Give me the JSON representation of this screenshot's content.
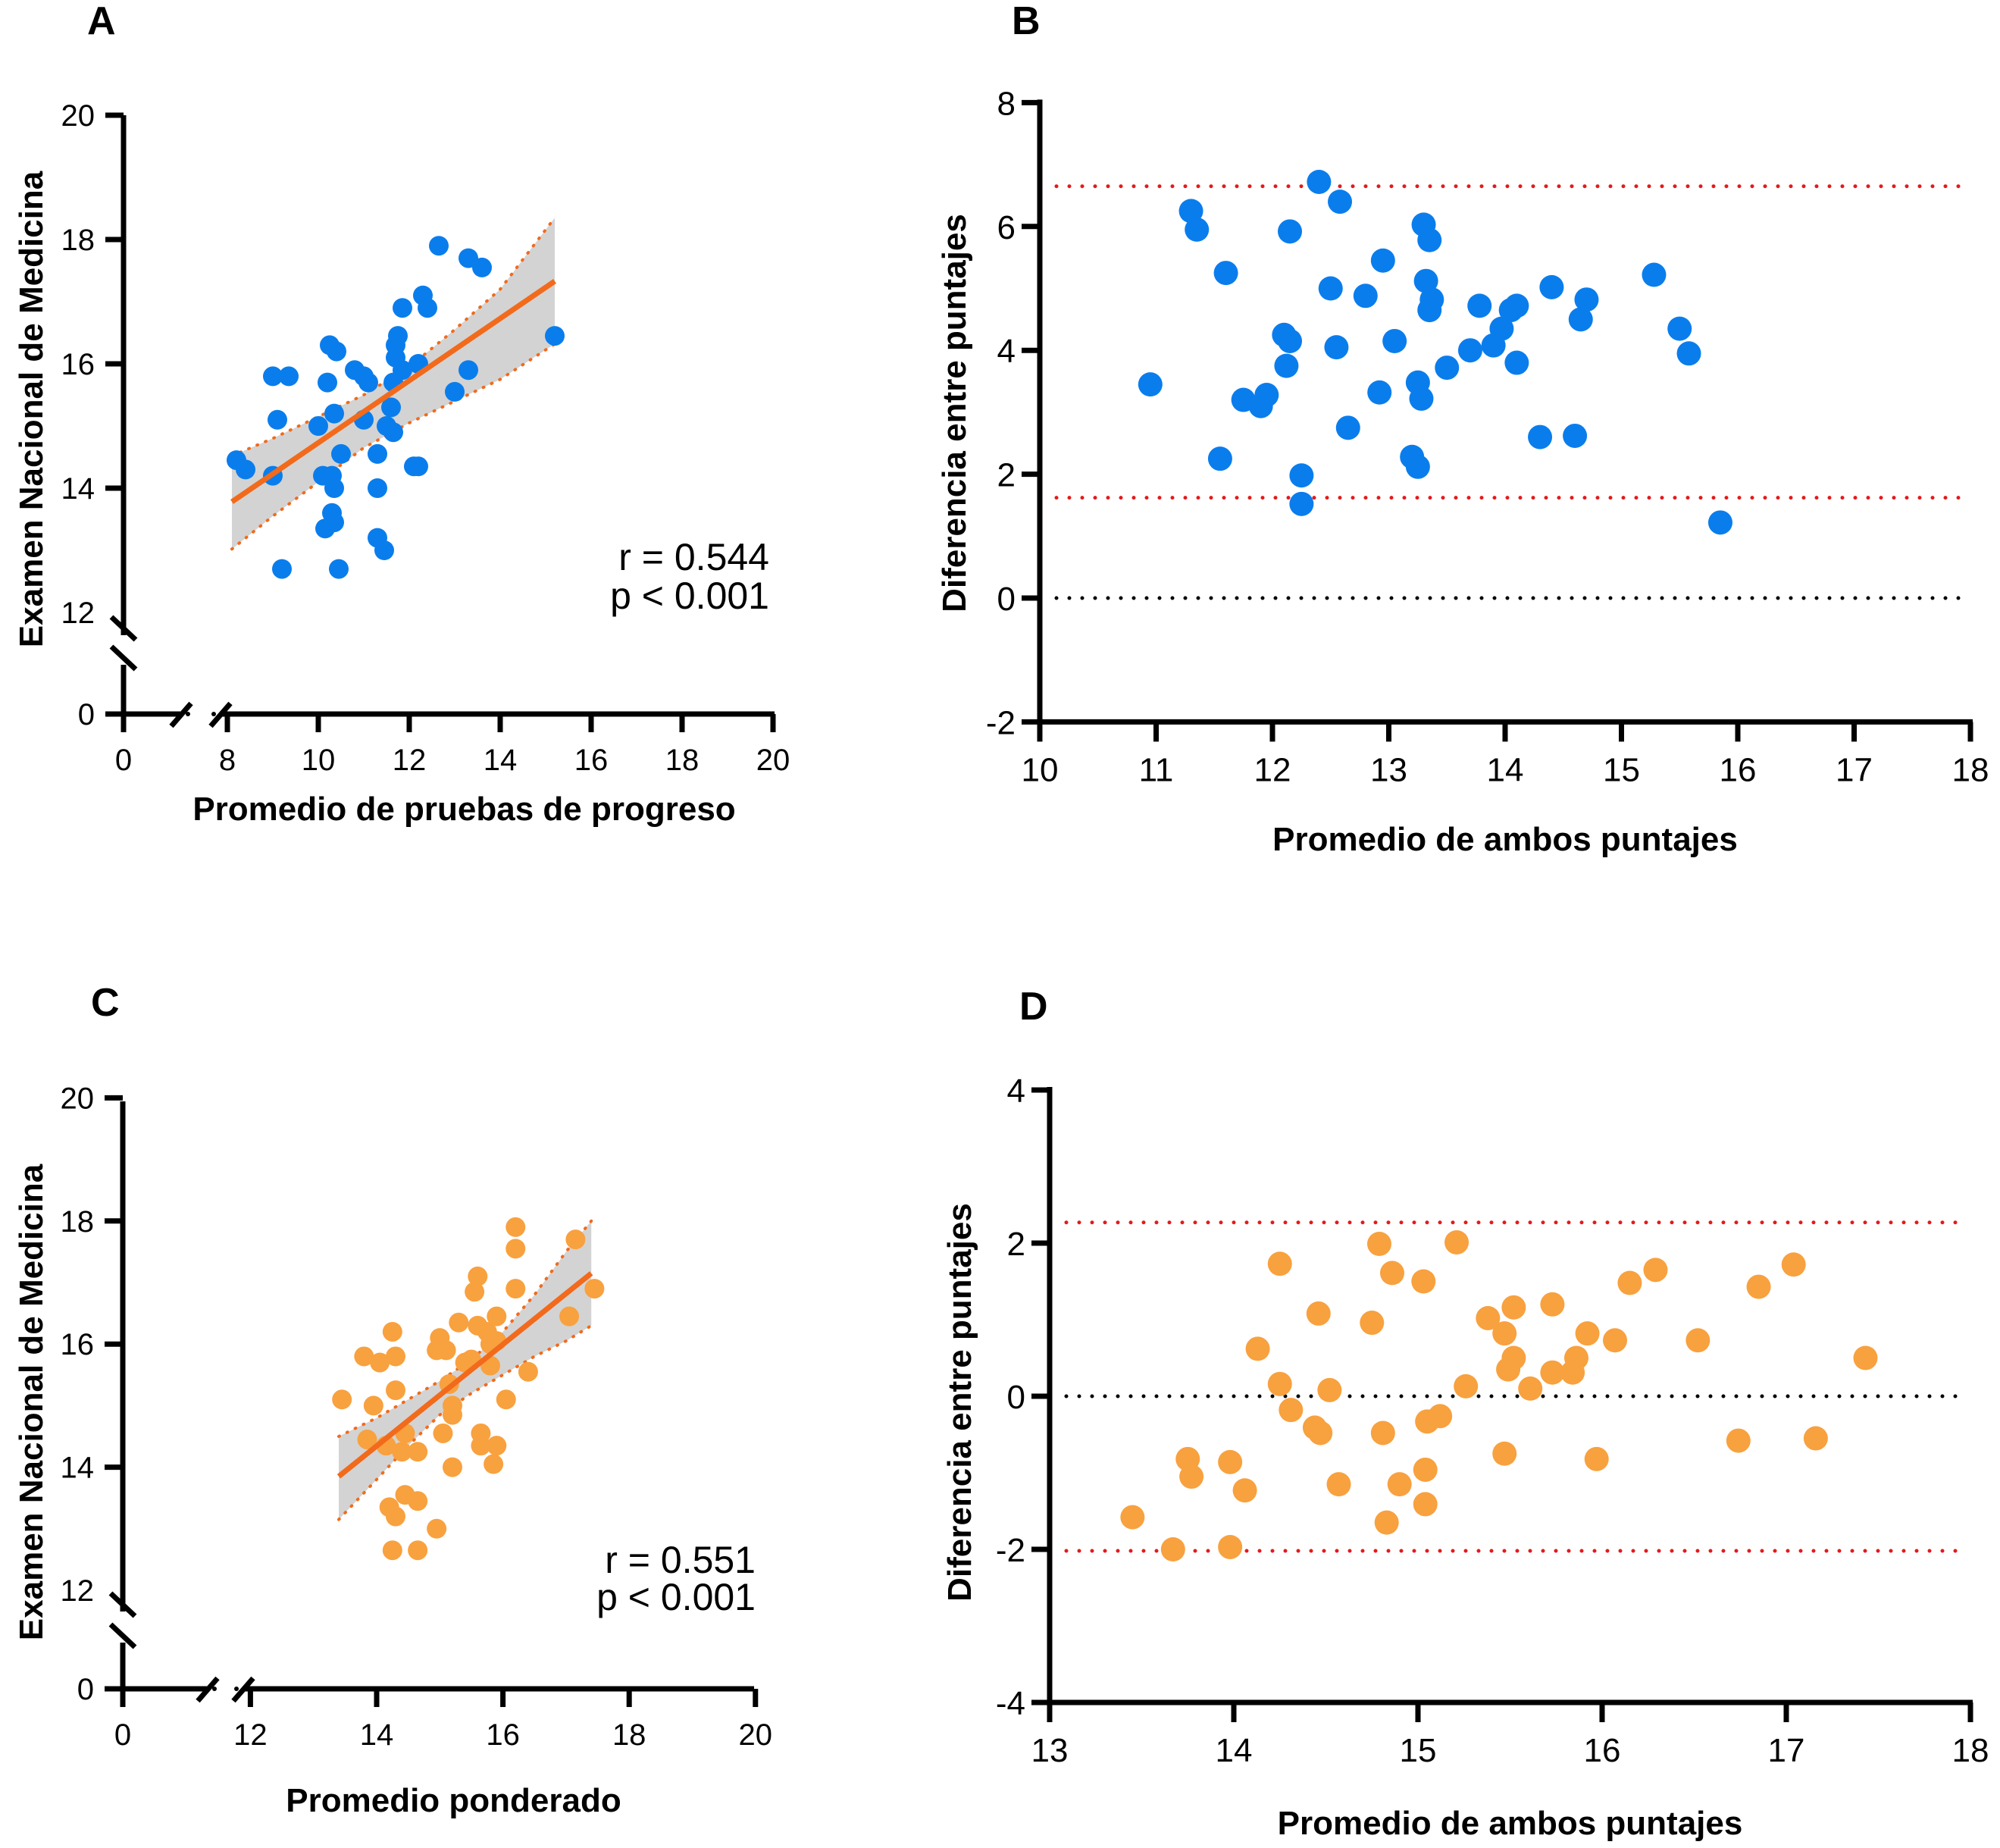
{
  "chart_data": [
    {
      "id": "A",
      "type": "scatter",
      "panel_label": "A",
      "xlabel": "Promedio de pruebas de progreso",
      "ylabel": "Examen Nacional de Medicina",
      "x_ticks": [
        "0",
        "8",
        "10",
        "12",
        "14",
        "16",
        "18",
        "20"
      ],
      "y_ticks": [
        "0",
        "12",
        "14",
        "16",
        "18",
        "20"
      ],
      "x_break": [
        0,
        8
      ],
      "y_break": [
        0,
        12
      ],
      "xlim": [
        8,
        20
      ],
      "ylim": [
        12,
        20
      ],
      "point_color": "#0a7ded",
      "fit_color": "#f26a1b",
      "band_color": "#d3d3d3",
      "annotation": [
        "r = 0.544",
        "p < 0.001"
      ],
      "fit": {
        "x": [
          8.1,
          15.2
        ],
        "y": [
          13.78,
          17.33
        ]
      },
      "ci_upper": {
        "x": [
          8.1,
          9,
          10,
          11,
          12,
          13,
          14,
          15.2
        ],
        "y": [
          14.52,
          14.8,
          15.15,
          15.5,
          15.95,
          16.55,
          17.2,
          18.35
        ]
      },
      "ci_lower": {
        "x": [
          8.1,
          9,
          10,
          11,
          12,
          13,
          14,
          15.2
        ],
        "y": [
          13.02,
          13.55,
          14.1,
          14.65,
          15.05,
          15.4,
          15.75,
          16.32
        ]
      },
      "points": [
        [
          8.2,
          14.45
        ],
        [
          8.4,
          14.3
        ],
        [
          9.0,
          15.8
        ],
        [
          9.35,
          15.8
        ],
        [
          9.1,
          15.1
        ],
        [
          9.0,
          14.2
        ],
        [
          9.2,
          12.7
        ],
        [
          10.0,
          15.0
        ],
        [
          10.1,
          14.2
        ],
        [
          10.3,
          14.2
        ],
        [
          10.35,
          14.0
        ],
        [
          10.2,
          15.7
        ],
        [
          10.25,
          16.3
        ],
        [
          10.4,
          16.2
        ],
        [
          10.35,
          15.2
        ],
        [
          10.5,
          14.55
        ],
        [
          10.3,
          13.6
        ],
        [
          10.35,
          13.45
        ],
        [
          10.15,
          13.35
        ],
        [
          10.45,
          12.7
        ],
        [
          10.8,
          15.9
        ],
        [
          11.0,
          15.8
        ],
        [
          11.1,
          15.7
        ],
        [
          11.0,
          15.1
        ],
        [
          11.3,
          14.55
        ],
        [
          11.3,
          14.0
        ],
        [
          11.3,
          13.2
        ],
        [
          11.45,
          13.0
        ],
        [
          11.5,
          15.0
        ],
        [
          11.65,
          14.9
        ],
        [
          11.6,
          15.3
        ],
        [
          11.65,
          15.7
        ],
        [
          11.7,
          16.1
        ],
        [
          11.75,
          16.45
        ],
        [
          11.7,
          16.3
        ],
        [
          11.85,
          15.9
        ],
        [
          11.85,
          16.9
        ],
        [
          12.2,
          16.0
        ],
        [
          12.1,
          14.35
        ],
        [
          12.2,
          14.35
        ],
        [
          12.3,
          17.1
        ],
        [
          12.4,
          16.9
        ],
        [
          12.65,
          17.9
        ],
        [
          13.0,
          15.55
        ],
        [
          13.3,
          15.9
        ],
        [
          13.3,
          17.7
        ],
        [
          13.6,
          17.55
        ],
        [
          15.2,
          16.45
        ]
      ]
    },
    {
      "id": "B",
      "type": "scatter",
      "panel_label": "B",
      "xlabel": "Promedio de ambos puntajes",
      "ylabel": "Diferencia entre puntajes",
      "x_ticks": [
        "10",
        "11",
        "12",
        "13",
        "14",
        "15",
        "16",
        "17",
        "18"
      ],
      "y_ticks": [
        "-2",
        "0",
        "2",
        "4",
        "6",
        "8"
      ],
      "xlim": [
        10,
        18
      ],
      "ylim": [
        -2,
        8
      ],
      "point_color": "#0a7ded",
      "reference_lines": [
        {
          "y": 6.65,
          "color": "#e31a1c",
          "style": "dotted"
        },
        {
          "y": 1.62,
          "color": "#e31a1c",
          "style": "dotted"
        },
        {
          "y": 0,
          "color": "#000000",
          "style": "dotted"
        }
      ],
      "points": [
        [
          10.95,
          3.45
        ],
        [
          11.3,
          6.25
        ],
        [
          11.35,
          5.95
        ],
        [
          11.55,
          2.25
        ],
        [
          11.6,
          5.25
        ],
        [
          11.75,
          3.2
        ],
        [
          11.9,
          3.1
        ],
        [
          11.95,
          3.28
        ],
        [
          12.1,
          4.25
        ],
        [
          12.15,
          5.92
        ],
        [
          12.15,
          4.15
        ],
        [
          12.12,
          3.75
        ],
        [
          12.25,
          1.98
        ],
        [
          12.25,
          1.52
        ],
        [
          12.4,
          6.72
        ],
        [
          12.5,
          5.0
        ],
        [
          12.55,
          4.05
        ],
        [
          12.58,
          6.4
        ],
        [
          12.65,
          2.75
        ],
        [
          12.8,
          4.88
        ],
        [
          12.92,
          3.32
        ],
        [
          12.95,
          5.45
        ],
        [
          13.05,
          4.15
        ],
        [
          13.2,
          2.28
        ],
        [
          13.25,
          2.12
        ],
        [
          13.25,
          3.48
        ],
        [
          13.28,
          3.22
        ],
        [
          13.3,
          6.03
        ],
        [
          13.32,
          5.12
        ],
        [
          13.35,
          5.78
        ],
        [
          13.35,
          4.65
        ],
        [
          13.37,
          4.82
        ],
        [
          13.5,
          3.72
        ],
        [
          13.7,
          4.0
        ],
        [
          13.78,
          4.72
        ],
        [
          13.9,
          4.08
        ],
        [
          13.97,
          4.35
        ],
        [
          14.05,
          4.65
        ],
        [
          14.1,
          4.72
        ],
        [
          14.1,
          3.8
        ],
        [
          14.3,
          2.6
        ],
        [
          14.4,
          5.02
        ],
        [
          14.6,
          2.62
        ],
        [
          14.65,
          4.5
        ],
        [
          14.7,
          4.82
        ],
        [
          15.28,
          5.22
        ],
        [
          15.5,
          4.35
        ],
        [
          15.58,
          3.95
        ],
        [
          15.85,
          1.22
        ]
      ]
    },
    {
      "id": "C",
      "type": "scatter",
      "panel_label": "C",
      "xlabel": "Promedio ponderado",
      "ylabel": "Examen Nacional de Medicina",
      "x_ticks": [
        "0",
        "12",
        "14",
        "16",
        "18",
        "20"
      ],
      "y_ticks": [
        "0",
        "12",
        "14",
        "16",
        "18",
        "20"
      ],
      "x_break": [
        0,
        12
      ],
      "y_break": [
        0,
        12
      ],
      "xlim": [
        12,
        20
      ],
      "ylim": [
        12,
        20
      ],
      "point_color": "#f8a13f",
      "fit_color": "#f26a1b",
      "band_color": "#d3d3d3",
      "annotation": [
        "r = 0.551",
        "p < 0.001"
      ],
      "fit": {
        "x": [
          13.4,
          17.4
        ],
        "y": [
          13.85,
          17.15
        ]
      },
      "ci_upper": {
        "x": [
          13.4,
          14,
          14.5,
          15,
          15.5,
          16,
          16.5,
          17,
          17.4
        ],
        "y": [
          14.5,
          14.8,
          15.1,
          15.4,
          15.75,
          16.2,
          16.8,
          17.5,
          18.0
        ]
      },
      "ci_lower": {
        "x": [
          13.4,
          14,
          14.5,
          15,
          15.5,
          16,
          16.5,
          17,
          17.4
        ],
        "y": [
          13.15,
          13.8,
          14.35,
          14.85,
          15.2,
          15.5,
          15.8,
          16.05,
          16.3
        ]
      },
      "points": [
        [
          13.45,
          15.1
        ],
        [
          13.8,
          15.8
        ],
        [
          13.85,
          14.45
        ],
        [
          13.95,
          15.0
        ],
        [
          14.05,
          15.7
        ],
        [
          14.15,
          14.35
        ],
        [
          14.2,
          13.35
        ],
        [
          14.25,
          16.2
        ],
        [
          14.3,
          15.8
        ],
        [
          14.3,
          15.25
        ],
        [
          14.3,
          13.2
        ],
        [
          14.25,
          12.65
        ],
        [
          14.45,
          14.55
        ],
        [
          14.4,
          14.25
        ],
        [
          14.45,
          13.55
        ],
        [
          14.65,
          14.25
        ],
        [
          14.65,
          13.45
        ],
        [
          14.65,
          12.65
        ],
        [
          14.95,
          13.0
        ],
        [
          14.95,
          15.9
        ],
        [
          15.0,
          16.1
        ],
        [
          15.05,
          14.55
        ],
        [
          15.1,
          15.9
        ],
        [
          15.15,
          15.35
        ],
        [
          15.2,
          15.0
        ],
        [
          15.2,
          14.85
        ],
        [
          15.2,
          14.0
        ],
        [
          15.3,
          16.35
        ],
        [
          15.4,
          15.7
        ],
        [
          15.5,
          15.75
        ],
        [
          15.55,
          16.85
        ],
        [
          15.6,
          17.1
        ],
        [
          15.6,
          16.3
        ],
        [
          15.65,
          14.55
        ],
        [
          15.65,
          14.35
        ],
        [
          15.75,
          16.2
        ],
        [
          15.8,
          16.0
        ],
        [
          15.8,
          15.65
        ],
        [
          15.85,
          14.05
        ],
        [
          15.9,
          14.35
        ],
        [
          15.9,
          16.45
        ],
        [
          15.9,
          16.05
        ],
        [
          16.05,
          15.1
        ],
        [
          16.2,
          17.9
        ],
        [
          16.2,
          17.55
        ],
        [
          16.2,
          16.9
        ],
        [
          16.4,
          15.55
        ],
        [
          17.05,
          16.45
        ],
        [
          17.15,
          17.7
        ],
        [
          17.45,
          16.9
        ]
      ]
    },
    {
      "id": "D",
      "type": "scatter",
      "panel_label": "D",
      "xlabel": "Promedio de ambos puntajes",
      "ylabel": "Diferencia entre puntajes",
      "x_ticks": [
        "13",
        "14",
        "15",
        "16",
        "17",
        "18"
      ],
      "y_ticks": [
        "-4",
        "-2",
        "0",
        "2",
        "4"
      ],
      "xlim": [
        13,
        18
      ],
      "ylim": [
        -4,
        4
      ],
      "point_color": "#f8a13f",
      "reference_lines": [
        {
          "y": 2.27,
          "color": "#e31a1c",
          "style": "dotted"
        },
        {
          "y": -2.02,
          "color": "#e31a1c",
          "style": "dotted"
        },
        {
          "y": 0,
          "color": "#000000",
          "style": "dotted"
        }
      ],
      "points": [
        [
          13.45,
          -1.58
        ],
        [
          13.67,
          -2.0
        ],
        [
          13.75,
          -0.82
        ],
        [
          13.77,
          -1.05
        ],
        [
          13.98,
          -0.86
        ],
        [
          13.98,
          -1.97
        ],
        [
          14.06,
          -1.23
        ],
        [
          14.13,
          0.62
        ],
        [
          14.25,
          1.73
        ],
        [
          14.25,
          0.16
        ],
        [
          14.31,
          -0.18
        ],
        [
          14.44,
          -0.41
        ],
        [
          14.46,
          1.08
        ],
        [
          14.47,
          -0.48
        ],
        [
          14.52,
          0.08
        ],
        [
          14.57,
          -1.15
        ],
        [
          14.75,
          0.96
        ],
        [
          14.79,
          1.99
        ],
        [
          14.81,
          -0.48
        ],
        [
          14.83,
          -1.65
        ],
        [
          14.86,
          1.61
        ],
        [
          14.9,
          -1.15
        ],
        [
          15.03,
          1.5
        ],
        [
          15.04,
          -0.96
        ],
        [
          15.04,
          -1.41
        ],
        [
          15.05,
          -0.33
        ],
        [
          15.12,
          -0.26
        ],
        [
          15.21,
          2.01
        ],
        [
          15.26,
          0.13
        ],
        [
          15.38,
          1.02
        ],
        [
          15.47,
          0.82
        ],
        [
          15.47,
          -0.75
        ],
        [
          15.49,
          0.35
        ],
        [
          15.52,
          0.5
        ],
        [
          15.52,
          1.16
        ],
        [
          15.61,
          0.1
        ],
        [
          15.73,
          1.2
        ],
        [
          15.73,
          0.31
        ],
        [
          15.84,
          0.31
        ],
        [
          15.86,
          0.5
        ],
        [
          15.92,
          0.82
        ],
        [
          15.97,
          -0.82
        ],
        [
          16.07,
          0.73
        ],
        [
          16.15,
          1.48
        ],
        [
          16.29,
          1.65
        ],
        [
          16.52,
          0.73
        ],
        [
          16.74,
          -0.58
        ],
        [
          16.85,
          1.43
        ],
        [
          17.04,
          1.72
        ],
        [
          17.16,
          -0.55
        ],
        [
          17.43,
          0.5
        ]
      ]
    }
  ]
}
